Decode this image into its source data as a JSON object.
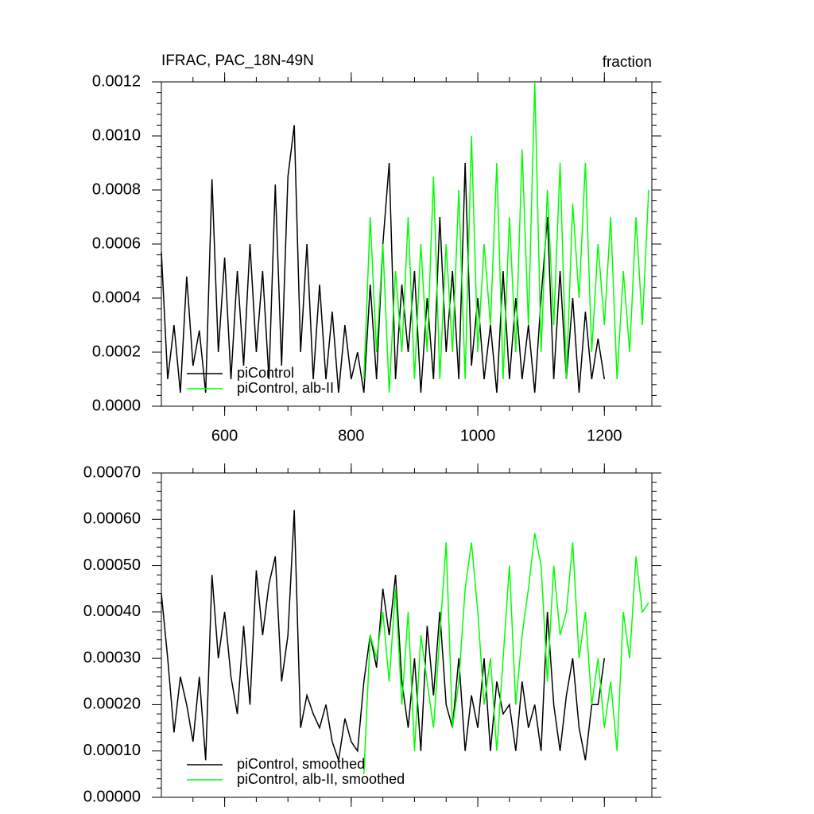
{
  "chart_data": [
    {
      "type": "line",
      "title": "IFRAC, PAC_18N-49N",
      "units": "fraction",
      "xlim": [
        500,
        1275
      ],
      "xticks": [
        600,
        800,
        1000,
        1200
      ],
      "ylim": [
        0,
        0.0012
      ],
      "yticks": [
        {
          "value": 0,
          "label": "0.0000"
        },
        {
          "value": 0.0002,
          "label": "0.0002"
        },
        {
          "value": 0.0004,
          "label": "0.0004"
        },
        {
          "value": 0.0006,
          "label": "0.0006"
        },
        {
          "value": 0.0008,
          "label": "0.0008"
        },
        {
          "value": 0.001,
          "label": "0.0010"
        },
        {
          "value": 0.0012,
          "label": "0.0012"
        }
      ],
      "legend": "lower left",
      "series": [
        {
          "name": "piControl",
          "color": "#000000",
          "x": [
            500,
            510,
            520,
            530,
            540,
            550,
            560,
            570,
            580,
            590,
            600,
            610,
            620,
            630,
            640,
            650,
            660,
            670,
            680,
            690,
            700,
            710,
            720,
            730,
            740,
            750,
            760,
            770,
            780,
            790,
            800,
            810,
            820,
            830,
            840,
            850,
            860,
            870,
            880,
            890,
            900,
            910,
            920,
            930,
            940,
            950,
            960,
            970,
            980,
            990,
            1000,
            1010,
            1020,
            1030,
            1040,
            1050,
            1060,
            1070,
            1080,
            1090,
            1100,
            1110,
            1120,
            1130,
            1140,
            1150,
            1160,
            1170,
            1180,
            1190,
            1200
          ],
          "values": [
            0.00057,
            0.0001,
            0.0003,
            5e-05,
            0.00048,
            0.00015,
            0.00028,
            5e-05,
            0.00084,
            0.0002,
            0.00055,
            0.0001,
            0.0005,
            0.00015,
            0.0006,
            0.0002,
            0.0005,
            0.0001,
            0.00082,
            0.00015,
            0.00085,
            0.00104,
            0.0002,
            0.0006,
            0.0001,
            0.00045,
            0.0001,
            0.00035,
            5e-05,
            0.0003,
            0.0001,
            0.0002,
            5e-05,
            0.00045,
            0.0001,
            0.0006,
            0.0009,
            0.0001,
            0.00045,
            0.0002,
            0.0005,
            5e-05,
            0.0004,
            0.0001,
            0.0007,
            0.0002,
            0.0005,
            0.0001,
            0.0009,
            0.00015,
            0.0004,
            0.0001,
            0.0003,
            5e-05,
            0.0005,
            0.0001,
            0.0004,
            0.0001,
            0.0003,
            5e-05,
            0.0004,
            0.0007,
            0.0001,
            0.0005,
            0.0001,
            0.0004,
            5e-05,
            0.00035,
            0.0001,
            0.00025,
            0.0001
          ]
        },
        {
          "name": "piControl, alb-II",
          "color": "#00ff00",
          "x": [
            820,
            830,
            840,
            850,
            860,
            870,
            880,
            890,
            900,
            910,
            920,
            930,
            940,
            950,
            960,
            970,
            980,
            990,
            1000,
            1010,
            1020,
            1030,
            1040,
            1050,
            1060,
            1070,
            1080,
            1090,
            1100,
            1110,
            1120,
            1130,
            1140,
            1150,
            1160,
            1170,
            1180,
            1190,
            1200,
            1210,
            1220,
            1230,
            1240,
            1250,
            1260,
            1270
          ],
          "values": [
            0.0001,
            0.0007,
            0.0002,
            0.0006,
            5e-05,
            0.0005,
            0.0002,
            0.0007,
            0.0001,
            0.0006,
            0.0002,
            0.00085,
            0.0001,
            0.0006,
            0.0002,
            0.0008,
            0.0001,
            0.001,
            0.0002,
            0.0006,
            0.0003,
            0.0009,
            0.0001,
            0.0007,
            0.0002,
            0.00095,
            0.0003,
            0.0012,
            0.0002,
            0.0008,
            0.0003,
            0.0009,
            0.0001,
            0.00075,
            0.0004,
            0.0009,
            0.0002,
            0.0006,
            0.0003,
            0.0007,
            0.0001,
            0.0005,
            0.0002,
            0.0007,
            0.0003,
            0.0008
          ]
        }
      ]
    },
    {
      "type": "line",
      "xlim": [
        500,
        1275
      ],
      "ylim": [
        0,
        0.0007
      ],
      "yticks": [
        {
          "value": 0,
          "label": "0.00000"
        },
        {
          "value": 0.0001,
          "label": "0.00010"
        },
        {
          "value": 0.0002,
          "label": "0.00020"
        },
        {
          "value": 0.0003,
          "label": "0.00030"
        },
        {
          "value": 0.0004,
          "label": "0.00040"
        },
        {
          "value": 0.0005,
          "label": "0.00050"
        },
        {
          "value": 0.0006,
          "label": "0.00060"
        },
        {
          "value": 0.0007,
          "label": "0.00070"
        }
      ],
      "legend": "lower left",
      "series": [
        {
          "name": "piControl, smoothed",
          "color": "#000000",
          "x": [
            500,
            510,
            520,
            530,
            540,
            550,
            560,
            570,
            580,
            590,
            600,
            610,
            620,
            630,
            640,
            650,
            660,
            670,
            680,
            690,
            700,
            710,
            720,
            730,
            740,
            750,
            760,
            770,
            780,
            790,
            800,
            810,
            820,
            830,
            840,
            850,
            860,
            870,
            880,
            890,
            900,
            910,
            920,
            930,
            940,
            950,
            960,
            970,
            980,
            990,
            1000,
            1010,
            1020,
            1030,
            1040,
            1050,
            1060,
            1070,
            1080,
            1090,
            1100,
            1110,
            1120,
            1130,
            1140,
            1150,
            1160,
            1170,
            1180,
            1190,
            1200
          ],
          "values": [
            0.00044,
            0.0003,
            0.00014,
            0.00026,
            0.0002,
            0.00012,
            0.00026,
            8e-05,
            0.00048,
            0.0003,
            0.0004,
            0.00026,
            0.00018,
            0.00037,
            0.0002,
            0.00049,
            0.00035,
            0.00046,
            0.00052,
            0.00025,
            0.00035,
            0.00062,
            0.00015,
            0.00022,
            0.00018,
            0.00015,
            0.0002,
            0.00012,
            8e-05,
            0.00017,
            0.00012,
            0.0001,
            0.00025,
            0.00035,
            0.00028,
            0.00045,
            0.00035,
            0.00048,
            0.00025,
            0.00015,
            0.0003,
            0.0001,
            0.00037,
            0.00022,
            0.0004,
            0.0002,
            0.00015,
            0.0003,
            0.0001,
            0.00022,
            0.00015,
            0.0003,
            0.0001,
            0.00025,
            0.00018,
            0.0002,
            0.0001,
            0.00025,
            0.00015,
            0.0002,
            0.0001,
            0.0004,
            0.0002,
            0.0001,
            0.00022,
            0.0003,
            0.00015,
            8e-05,
            0.0002,
            0.0002,
            0.0003
          ]
        },
        {
          "name": "piControl, alb-II, smoothed",
          "color": "#00ff00",
          "x": [
            820,
            830,
            840,
            850,
            860,
            870,
            880,
            890,
            900,
            910,
            920,
            930,
            940,
            950,
            960,
            970,
            980,
            990,
            1000,
            1010,
            1020,
            1030,
            1040,
            1050,
            1060,
            1070,
            1080,
            1090,
            1100,
            1110,
            1120,
            1130,
            1140,
            1150,
            1160,
            1170,
            1180,
            1190,
            1200,
            1210,
            1220,
            1230,
            1240,
            1250,
            1260,
            1270
          ],
          "values": [
            5e-05,
            0.00035,
            0.0003,
            0.0004,
            0.00025,
            0.00045,
            0.0002,
            0.0004,
            0.0001,
            0.00035,
            0.00025,
            0.00015,
            0.00035,
            0.00055,
            0.00015,
            0.00025,
            0.00045,
            0.00055,
            0.0004,
            0.0002,
            0.0003,
            0.0001,
            0.0003,
            0.0005,
            0.0002,
            0.00035,
            0.00045,
            0.00057,
            0.0005,
            0.00025,
            0.0005,
            0.00035,
            0.0004,
            0.00055,
            0.0003,
            0.0004,
            0.0002,
            0.0003,
            0.00015,
            0.00025,
            0.0001,
            0.0004,
            0.0003,
            0.00052,
            0.0004,
            0.00042
          ]
        }
      ]
    }
  ]
}
